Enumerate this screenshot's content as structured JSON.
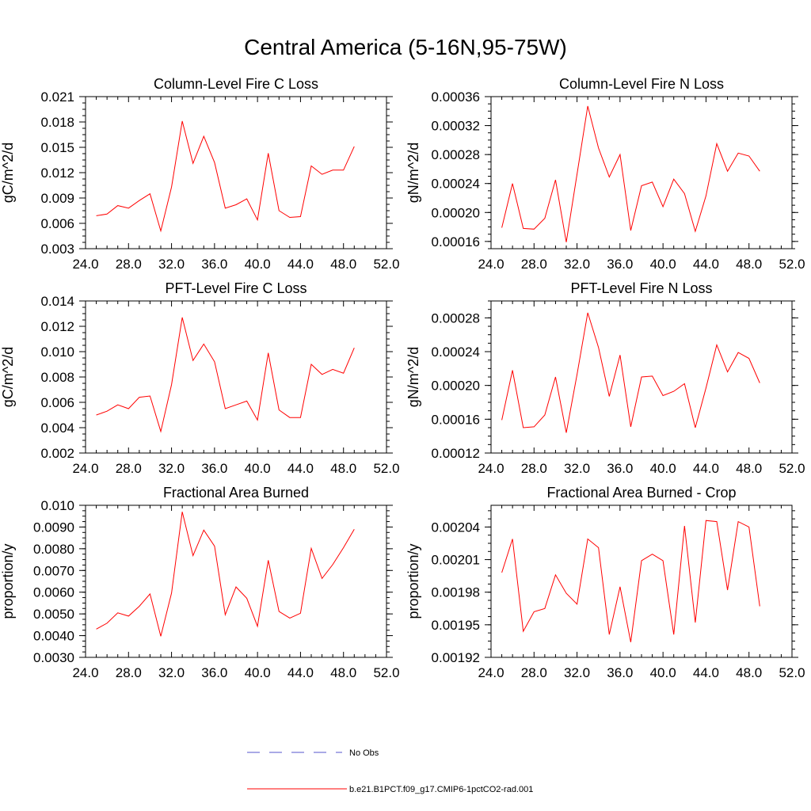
{
  "title": "Central America (5-16N,95-75W)",
  "colors": {
    "series": "#ff0000",
    "obs": "#5555cc",
    "axis": "#000000"
  },
  "legend": {
    "obs_label": "No Obs",
    "model_label": "b.e21.B1PCT.f09_g17.CMIP6-1pctCO2-rad.001"
  },
  "chart_data": [
    {
      "type": "line",
      "title": "Column-Level Fire C Loss",
      "ylabel": "gC/m^2/d",
      "xlim": [
        24,
        52
      ],
      "xticks": [
        "24.0",
        "28.0",
        "32.0",
        "36.0",
        "40.0",
        "44.0",
        "48.0",
        "52.0"
      ],
      "ylim": [
        0.003,
        0.021
      ],
      "yticks": [
        "0.003",
        "0.006",
        "0.009",
        "0.012",
        "0.015",
        "0.018",
        "0.021"
      ],
      "x": [
        25,
        26,
        27,
        28,
        29,
        30,
        31,
        32,
        33,
        34,
        35,
        36,
        37,
        38,
        39,
        40,
        41,
        42,
        43,
        44,
        45,
        46,
        47,
        48,
        49
      ],
      "series": [
        {
          "name": "b.e21.B1PCT.f09_g17.CMIP6-1pctCO2-rad.001",
          "values": [
            0.0069,
            0.0071,
            0.0081,
            0.0078,
            0.0087,
            0.0095,
            0.0051,
            0.0103,
            0.0181,
            0.0131,
            0.0163,
            0.0132,
            0.0078,
            0.0082,
            0.0089,
            0.0064,
            0.0143,
            0.0075,
            0.0067,
            0.0068,
            0.0128,
            0.0118,
            0.0123,
            0.0123,
            0.0151
          ]
        }
      ]
    },
    {
      "type": "line",
      "title": "Column-Level Fire N Loss",
      "ylabel": "gN/m^2/d",
      "xlim": [
        24,
        52
      ],
      "xticks": [
        "24.0",
        "28.0",
        "32.0",
        "36.0",
        "40.0",
        "44.0",
        "48.0",
        "52.0"
      ],
      "ylim": [
        0.00015,
        0.00036
      ],
      "yticks": [
        "0.00016",
        "0.00020",
        "0.00024",
        "0.00028",
        "0.00032",
        "0.00036"
      ],
      "x": [
        25,
        26,
        27,
        28,
        29,
        30,
        31,
        32,
        33,
        34,
        35,
        36,
        37,
        38,
        39,
        40,
        41,
        42,
        43,
        44,
        45,
        46,
        47,
        48,
        49
      ],
      "series": [
        {
          "name": "b.e21.B1PCT.f09_g17.CMIP6-1pctCO2-rad.001",
          "values": [
            0.000179,
            0.00024,
            0.000178,
            0.000177,
            0.000192,
            0.000245,
            0.000159,
            0.000253,
            0.000347,
            0.000289,
            0.000249,
            0.00028,
            0.000175,
            0.000237,
            0.000242,
            0.000208,
            0.000246,
            0.000226,
            0.000174,
            0.000223,
            0.000295,
            0.000257,
            0.000282,
            0.000278,
            0.000257
          ]
        }
      ]
    },
    {
      "type": "line",
      "title": "PFT-Level Fire C Loss",
      "ylabel": "gC/m^2/d",
      "xlim": [
        24,
        52
      ],
      "xticks": [
        "24.0",
        "28.0",
        "32.0",
        "36.0",
        "40.0",
        "44.0",
        "48.0",
        "52.0"
      ],
      "ylim": [
        0.002,
        0.014
      ],
      "yticks": [
        "0.002",
        "0.004",
        "0.006",
        "0.008",
        "0.010",
        "0.012",
        "0.014"
      ],
      "x": [
        25,
        26,
        27,
        28,
        29,
        30,
        31,
        32,
        33,
        34,
        35,
        36,
        37,
        38,
        39,
        40,
        41,
        42,
        43,
        44,
        45,
        46,
        47,
        48,
        49
      ],
      "series": [
        {
          "name": "b.e21.B1PCT.f09_g17.CMIP6-1pctCO2-rad.001",
          "values": [
            0.005,
            0.0053,
            0.0058,
            0.0055,
            0.0064,
            0.0065,
            0.0037,
            0.0074,
            0.0127,
            0.0093,
            0.0106,
            0.0092,
            0.0055,
            0.0058,
            0.0061,
            0.0046,
            0.0099,
            0.0054,
            0.0048,
            0.0048,
            0.009,
            0.0082,
            0.0086,
            0.0083,
            0.0103
          ]
        }
      ]
    },
    {
      "type": "line",
      "title": "PFT-Level Fire N Loss",
      "ylabel": "gN/m^2/d",
      "xlim": [
        24,
        52
      ],
      "xticks": [
        "24.0",
        "28.0",
        "32.0",
        "36.0",
        "40.0",
        "44.0",
        "48.0",
        "52.0"
      ],
      "ylim": [
        0.00012,
        0.0003
      ],
      "yticks": [
        "0.00012",
        "0.00016",
        "0.00020",
        "0.00024",
        "0.00028"
      ],
      "x": [
        25,
        26,
        27,
        28,
        29,
        30,
        31,
        32,
        33,
        34,
        35,
        36,
        37,
        38,
        39,
        40,
        41,
        42,
        43,
        44,
        45,
        46,
        47,
        48,
        49
      ],
      "series": [
        {
          "name": "b.e21.B1PCT.f09_g17.CMIP6-1pctCO2-rad.001",
          "values": [
            0.000159,
            0.000218,
            0.00015,
            0.000151,
            0.000165,
            0.00021,
            0.000144,
            0.000213,
            0.000286,
            0.000245,
            0.000187,
            0.000236,
            0.000151,
            0.00021,
            0.000211,
            0.000188,
            0.000193,
            0.000202,
            0.00015,
            0.000197,
            0.000248,
            0.000216,
            0.000239,
            0.000232,
            0.000203
          ]
        }
      ]
    },
    {
      "type": "line",
      "title": "Fractional Area Burned",
      "ylabel": "proportion/y",
      "xlim": [
        24,
        52
      ],
      "xticks": [
        "24.0",
        "28.0",
        "32.0",
        "36.0",
        "40.0",
        "44.0",
        "48.0",
        "52.0"
      ],
      "ylim": [
        0.003,
        0.01
      ],
      "yticks": [
        "0.0030",
        "0.0040",
        "0.0050",
        "0.0060",
        "0.0070",
        "0.0080",
        "0.0090",
        "0.010"
      ],
      "x": [
        25,
        26,
        27,
        28,
        29,
        30,
        31,
        32,
        33,
        34,
        35,
        36,
        37,
        38,
        39,
        40,
        41,
        42,
        43,
        44,
        45,
        46,
        47,
        48,
        49
      ],
      "series": [
        {
          "name": "b.e21.B1PCT.f09_g17.CMIP6-1pctCO2-rad.001",
          "values": [
            0.0043,
            0.00457,
            0.00505,
            0.0049,
            0.00535,
            0.00592,
            0.00397,
            0.00596,
            0.0097,
            0.00768,
            0.00886,
            0.00812,
            0.00496,
            0.00624,
            0.00572,
            0.00443,
            0.00747,
            0.00511,
            0.00481,
            0.00503,
            0.00802,
            0.00663,
            0.00727,
            0.00805,
            0.0089
          ]
        }
      ]
    },
    {
      "type": "line",
      "title": "Fractional Area Burned - Crop",
      "ylabel": "proportion/y",
      "xlim": [
        24,
        52
      ],
      "xticks": [
        "24.0",
        "28.0",
        "32.0",
        "36.0",
        "40.0",
        "44.0",
        "48.0",
        "52.0"
      ],
      "ylim": [
        0.00192,
        0.00206
      ],
      "yticks": [
        "0.00192",
        "0.00195",
        "0.00198",
        "0.00201",
        "0.00204"
      ],
      "x": [
        25,
        26,
        27,
        28,
        29,
        30,
        31,
        32,
        33,
        34,
        35,
        36,
        37,
        38,
        39,
        40,
        41,
        42,
        43,
        44,
        45,
        46,
        47,
        48,
        49
      ],
      "series": [
        {
          "name": "b.e21.B1PCT.f09_g17.CMIP6-1pctCO2-rad.001",
          "values": [
            0.001998,
            0.002029,
            0.001944,
            0.001962,
            0.001965,
            0.001996,
            0.001979,
            0.001969,
            0.002029,
            0.002021,
            0.001941,
            0.001985,
            0.001934,
            0.002009,
            0.002015,
            0.002009,
            0.001941,
            0.002041,
            0.001952,
            0.002046,
            0.002045,
            0.001982,
            0.002045,
            0.00204,
            0.001967
          ]
        }
      ]
    }
  ]
}
